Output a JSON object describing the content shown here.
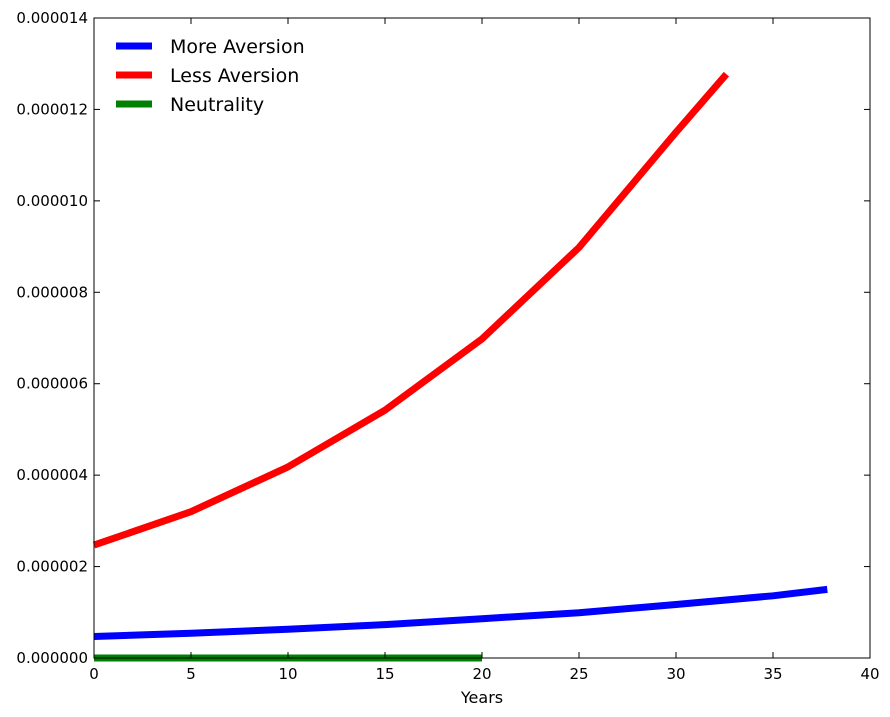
{
  "chart_data": {
    "type": "line",
    "xlabel": "Years",
    "ylabel": "",
    "xlim": [
      0,
      40
    ],
    "ylim": [
      0,
      1.4e-05
    ],
    "xticks": [
      0,
      5,
      10,
      15,
      20,
      25,
      30,
      35,
      40
    ],
    "xtick_labels": [
      "0",
      "5",
      "10",
      "15",
      "20",
      "25",
      "30",
      "35",
      "40"
    ],
    "yticks": [
      0,
      2e-06,
      4e-06,
      6e-06,
      8e-06,
      1e-05,
      1.2e-05,
      1.4e-05
    ],
    "ytick_labels": [
      "0.000000",
      "0.000002",
      "0.000004",
      "0.000006",
      "0.000008",
      "0.000010",
      "0.000012",
      "0.000014"
    ],
    "grid": false,
    "legend_position": "top-left",
    "series": [
      {
        "name": "More Aversion",
        "color": "#0000ff",
        "x": [
          0,
          5,
          10,
          15,
          20,
          25,
          30,
          35,
          37.8
        ],
        "y": [
          4.7e-07,
          5.4e-07,
          6.3e-07,
          7.3e-07,
          8.6e-07,
          9.9e-07,
          1.17e-06,
          1.36e-06,
          1.5e-06
        ]
      },
      {
        "name": "Less Aversion",
        "color": "#ff0000",
        "x": [
          0,
          5,
          10,
          15,
          20,
          25,
          30,
          32.6
        ],
        "y": [
          2.47e-06,
          3.2e-06,
          4.18e-06,
          5.42e-06,
          6.98e-06,
          8.98e-06,
          1.15e-05,
          1.277e-05
        ]
      },
      {
        "name": "Neutrality",
        "color": "#008000",
        "x": [
          0,
          20
        ],
        "y": [
          0.0,
          0.0
        ]
      }
    ]
  }
}
